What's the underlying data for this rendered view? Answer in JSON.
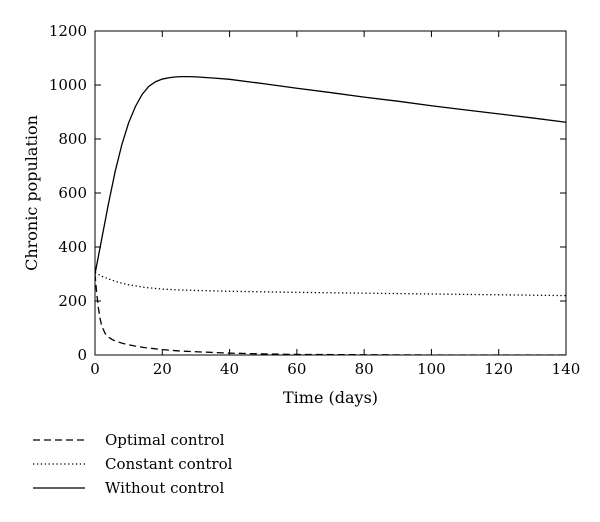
{
  "chart_data": {
    "type": "line",
    "title": "",
    "xlabel": "Time (days)",
    "ylabel": "Chronic population",
    "xlim": [
      0,
      140
    ],
    "ylim": [
      0,
      1200
    ],
    "xticks": [
      0,
      20,
      40,
      60,
      80,
      100,
      120,
      140
    ],
    "yticks": [
      0,
      200,
      400,
      600,
      800,
      1000,
      1200
    ],
    "grid": false,
    "legend_placement": "bottom-left, below plot",
    "series": [
      {
        "name": "Optimal control",
        "dash": "dashed",
        "color": "#000000",
        "x": [
          0,
          0.5,
          1,
          1.5,
          2,
          3,
          4,
          5,
          6,
          8,
          10,
          12,
          15,
          20,
          25,
          30,
          40,
          50,
          60,
          80,
          100,
          140
        ],
        "y": [
          300,
          230,
          175,
          135,
          108,
          80,
          66,
          58,
          52,
          44,
          38,
          33,
          27,
          20,
          15,
          12,
          7,
          4,
          2,
          1,
          0,
          0
        ]
      },
      {
        "name": "Constant control",
        "dash": "dotted",
        "color": "#000000",
        "x": [
          0,
          2,
          4,
          6,
          8,
          10,
          15,
          20,
          25,
          30,
          40,
          50,
          60,
          80,
          100,
          120,
          140
        ],
        "y": [
          305,
          292,
          282,
          273,
          266,
          260,
          250,
          244,
          241,
          239,
          236,
          234,
          232,
          229,
          226,
          223,
          220
        ]
      },
      {
        "name": "Without control",
        "dash": "solid",
        "color": "#000000",
        "x": [
          0,
          2,
          4,
          6,
          8,
          10,
          12,
          14,
          16,
          18,
          20,
          22,
          24,
          26,
          28,
          30,
          35,
          40,
          50,
          60,
          70,
          80,
          90,
          100,
          110,
          120,
          130,
          140
        ],
        "y": [
          300,
          430,
          560,
          680,
          780,
          860,
          920,
          965,
          995,
          1012,
          1022,
          1027,
          1030,
          1031,
          1031,
          1030,
          1026,
          1021,
          1005,
          988,
          972,
          955,
          940,
          923,
          908,
          893,
          878,
          862
        ]
      }
    ]
  }
}
